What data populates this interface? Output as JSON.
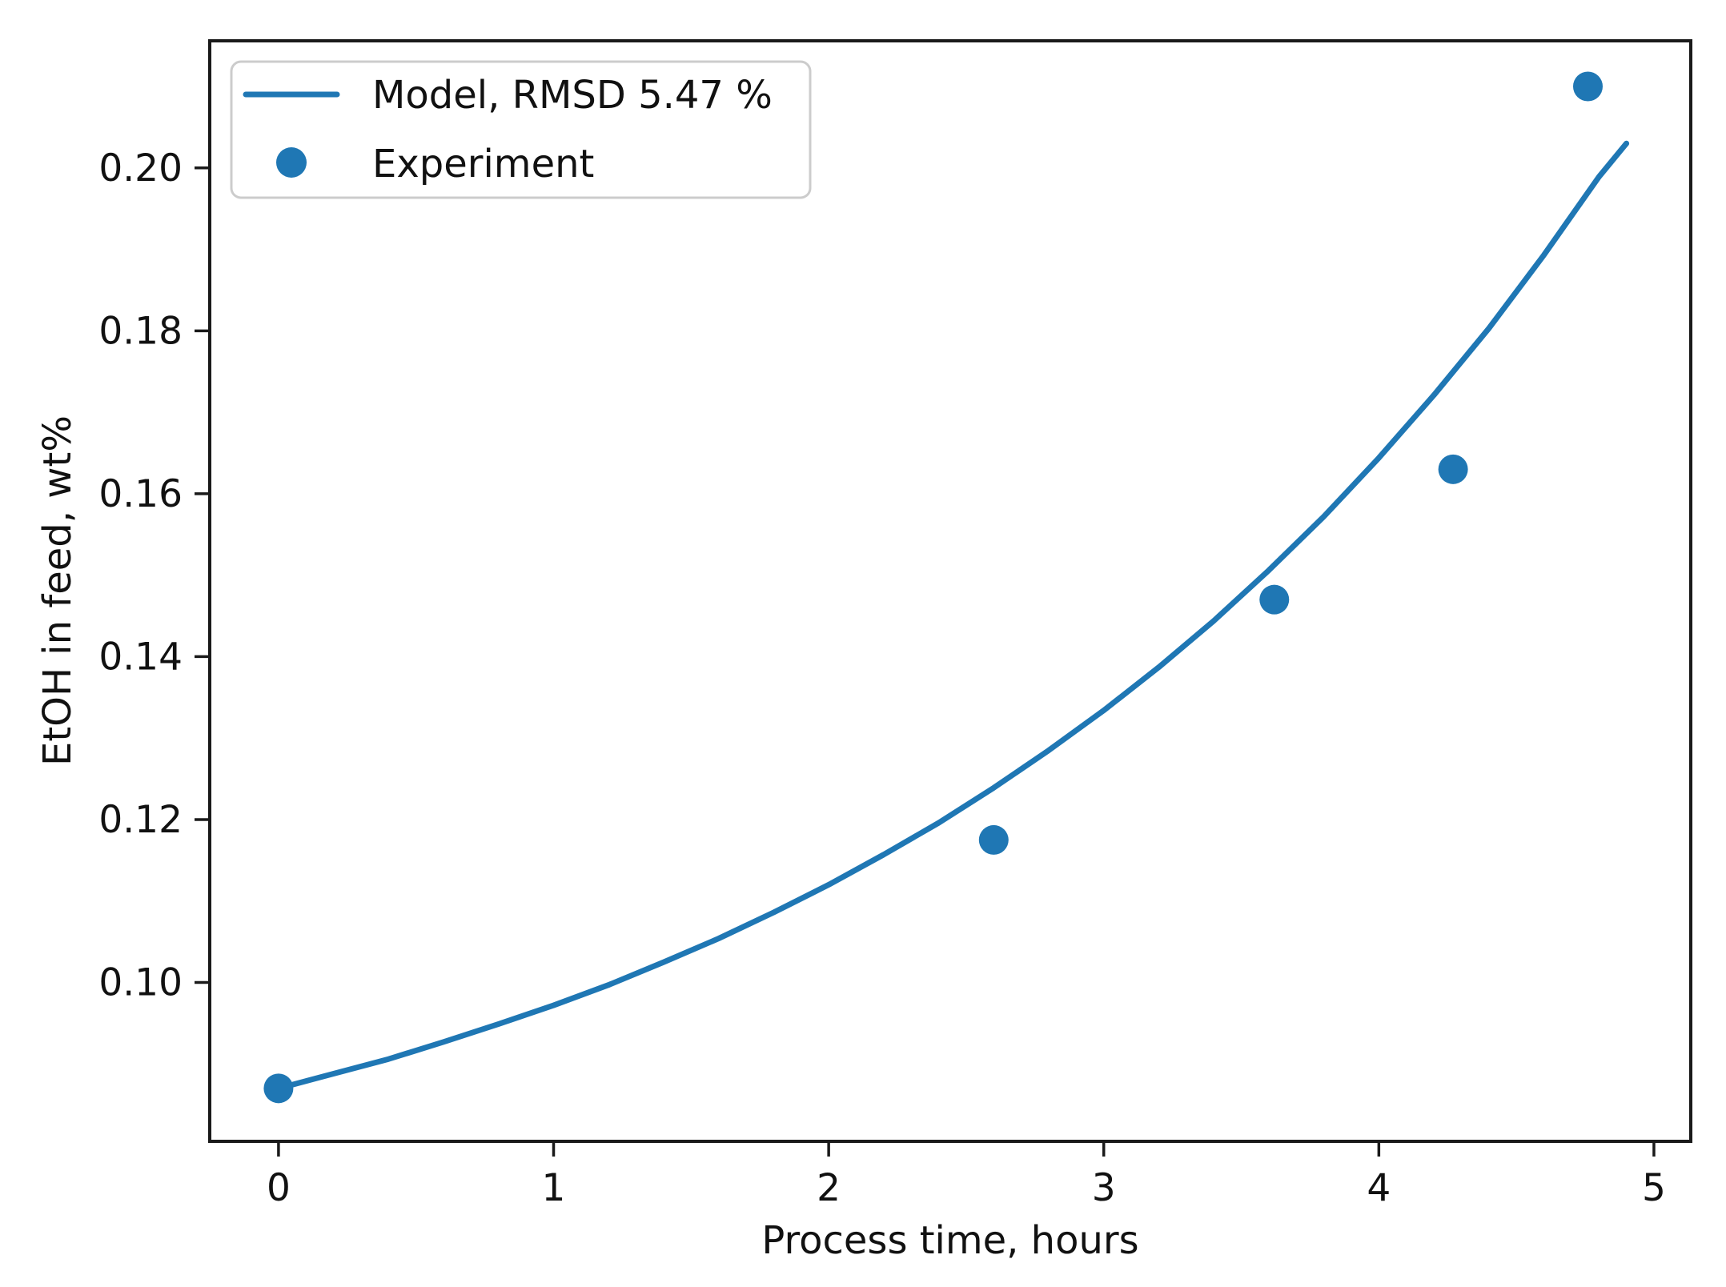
{
  "figure": {
    "kind": "matplotlib-style xy plot",
    "background_color": "#ffffff",
    "spine_color": "#1a1a1a",
    "accent_color": "#1f77b4"
  },
  "chart_data": {
    "type": "line",
    "xlabel": "Process time, hours",
    "ylabel": "EtOH in feed, wt%",
    "xlim": [
      -0.25,
      5.134
    ],
    "ylim": [
      0.0805,
      0.2156
    ],
    "grid": false,
    "x_ticks": [
      0,
      1,
      2,
      3,
      4,
      5
    ],
    "x_tick_labels": [
      "0",
      "1",
      "2",
      "3",
      "4",
      "5"
    ],
    "y_ticks": [
      0.1,
      0.12,
      0.14,
      0.16,
      0.18,
      0.2
    ],
    "y_tick_labels": [
      "0.10",
      "0.12",
      "0.14",
      "0.16",
      "0.18",
      "0.20"
    ],
    "legend": {
      "position": "upper left",
      "border_color": "#cccccc",
      "background": "#ffffff"
    },
    "series": [
      {
        "name": "Model, RMSD 5.47 %",
        "type": "line",
        "color": "#1f77b4",
        "rmsd_percent": 5.47,
        "x": [
          0,
          0.2,
          0.4,
          0.6,
          0.8,
          1.0,
          1.2,
          1.4,
          1.6,
          1.8,
          2.0,
          2.2,
          2.4,
          2.6,
          2.8,
          3.0,
          3.2,
          3.4,
          3.6,
          3.8,
          4.0,
          4.2,
          4.4,
          4.6,
          4.8,
          4.9
        ],
        "y": [
          0.087,
          0.0888,
          0.0906,
          0.0927,
          0.0949,
          0.0972,
          0.0997,
          0.1025,
          0.1054,
          0.1086,
          0.112,
          0.1157,
          0.1196,
          0.1239,
          0.1285,
          0.1334,
          0.1387,
          0.1444,
          0.1506,
          0.1572,
          0.1644,
          0.1721,
          0.1803,
          0.1893,
          0.1989,
          0.203
        ]
      },
      {
        "name": "Experiment",
        "type": "scatter",
        "color": "#1f77b4",
        "x": [
          0,
          2.6,
          3.62,
          4.27,
          4.76
        ],
        "y": [
          0.087,
          0.1175,
          0.147,
          0.163,
          0.21
        ]
      }
    ]
  }
}
